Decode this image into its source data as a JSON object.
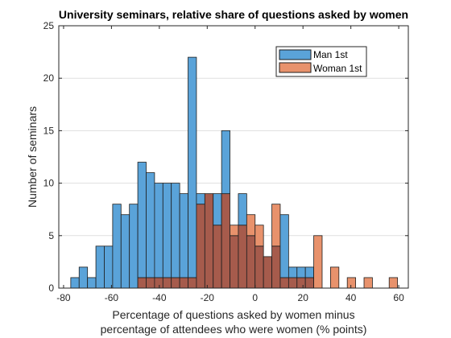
{
  "colors": {
    "man": "#5aa3d9",
    "woman": "#e8926c",
    "overlap": "#a65b4c",
    "edge": "#1e1e1e",
    "grid": "#dfdfdf"
  },
  "chart_data": {
    "type": "bar",
    "title": "University seminars, relative share of questions asked by women",
    "xlabel_line1": "Percentage of questions asked by women minus",
    "xlabel_line2": "percentage of attendees who were women (% points)",
    "ylabel": "Number of seminars",
    "xlim": [
      -82,
      64
    ],
    "ylim": [
      0,
      25
    ],
    "xticks": [
      -80,
      -60,
      -40,
      -20,
      0,
      20,
      40,
      60
    ],
    "yticks": [
      0,
      5,
      10,
      15,
      20,
      25
    ],
    "xtick_labels": [
      "-80",
      "-60",
      "-40",
      "-20",
      "0",
      "20",
      "40",
      "60"
    ],
    "ytick_labels": [
      "0",
      "5",
      "10",
      "15",
      "20",
      "25"
    ],
    "grid": "y",
    "legend_position": "top-right",
    "bin_width": 3.5,
    "series": [
      {
        "name": "Man 1st",
        "bins": [
          {
            "start": -77,
            "count": 1
          },
          {
            "start": -73.5,
            "count": 2
          },
          {
            "start": -70,
            "count": 1
          },
          {
            "start": -66.5,
            "count": 4
          },
          {
            "start": -63,
            "count": 4
          },
          {
            "start": -59.5,
            "count": 8
          },
          {
            "start": -56,
            "count": 7
          },
          {
            "start": -52.5,
            "count": 8
          },
          {
            "start": -49,
            "count": 12
          },
          {
            "start": -45.5,
            "count": 11
          },
          {
            "start": -42,
            "count": 10
          },
          {
            "start": -38.5,
            "count": 10
          },
          {
            "start": -35,
            "count": 10
          },
          {
            "start": -31.5,
            "count": 9
          },
          {
            "start": -28,
            "count": 22
          },
          {
            "start": -24.5,
            "count": 9
          },
          {
            "start": -21,
            "count": 9
          },
          {
            "start": -17.5,
            "count": 9
          },
          {
            "start": -14,
            "count": 15
          },
          {
            "start": -10.5,
            "count": 5
          },
          {
            "start": -7,
            "count": 9
          },
          {
            "start": -3.5,
            "count": 5
          },
          {
            "start": 0,
            "count": 4
          },
          {
            "start": 3.5,
            "count": 3
          },
          {
            "start": 7,
            "count": 4
          },
          {
            "start": 10.5,
            "count": 7
          },
          {
            "start": 14,
            "count": 2
          },
          {
            "start": 17.5,
            "count": 2
          },
          {
            "start": 21,
            "count": 2
          }
        ]
      },
      {
        "name": "Woman 1st",
        "bins": [
          {
            "start": -49,
            "count": 1
          },
          {
            "start": -45.5,
            "count": 1
          },
          {
            "start": -42,
            "count": 1
          },
          {
            "start": -38.5,
            "count": 1
          },
          {
            "start": -35,
            "count": 1
          },
          {
            "start": -31.5,
            "count": 1
          },
          {
            "start": -28,
            "count": 1
          },
          {
            "start": -24.5,
            "count": 8
          },
          {
            "start": -21,
            "count": 9
          },
          {
            "start": -17.5,
            "count": 6
          },
          {
            "start": -14,
            "count": 9
          },
          {
            "start": -10.5,
            "count": 6
          },
          {
            "start": -7,
            "count": 6
          },
          {
            "start": -3.5,
            "count": 7
          },
          {
            "start": 0,
            "count": 6
          },
          {
            "start": 3.5,
            "count": 3
          },
          {
            "start": 7,
            "count": 8
          },
          {
            "start": 10.5,
            "count": 1
          },
          {
            "start": 14,
            "count": 1
          },
          {
            "start": 17.5,
            "count": 1
          },
          {
            "start": 21,
            "count": 1
          },
          {
            "start": 24.5,
            "count": 5
          },
          {
            "start": 31.5,
            "count": 2
          },
          {
            "start": 38.5,
            "count": 1
          },
          {
            "start": 45.5,
            "count": 1
          },
          {
            "start": 56,
            "count": 1
          }
        ]
      }
    ]
  }
}
